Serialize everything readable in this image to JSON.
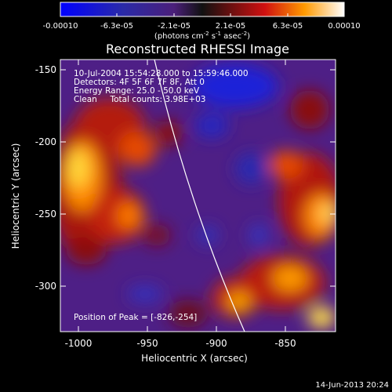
{
  "colorbar": {
    "labels": [
      "-0.00010",
      "-6.3e-05",
      "-2.1e-05",
      "2.1e-05",
      "6.3e-05",
      "0.00010"
    ],
    "units_prefix": "(photons cm",
    "units_mid": " s",
    "units_mid2": " asec",
    "units_suffix": ")",
    "sup_minus2_a": "-2",
    "sup_minus1": "-1",
    "sup_minus2_b": "-2"
  },
  "image": {
    "title": "Reconstructed RHESSI Image",
    "info_lines": [
      "10-Jul-2004 15:54:28.000 to 15:59:46.000",
      "Detectors: 4F 5F 6F 7F 8F, Att 0",
      "Energy Range: 25.0 - 50.0 keV",
      "Clean     Total counts: 3.98E+03"
    ],
    "peak_text": "Position of Peak = [-826,-254]",
    "xlabel": "Heliocentric X (arcsec)",
    "ylabel": "Heliocentric Y (arcsec)",
    "xticks": [
      "-1000",
      "-950",
      "-900",
      "-850"
    ],
    "yticks": [
      "-150",
      "-200",
      "-250",
      "-300"
    ],
    "timestamp": "14-Jun-2013 20:24"
  }
}
